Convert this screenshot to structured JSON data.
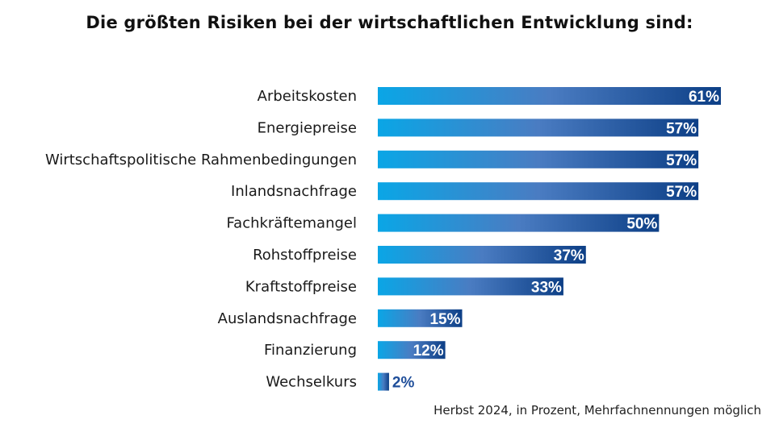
{
  "chart_data": {
    "type": "bar",
    "orientation": "horizontal",
    "title": "Die größten Risiken bei der wirtschaftlichen Entwicklung sind:",
    "categories": [
      "Arbeitskosten",
      "Energiepreise",
      "Wirtschaftspolitische Rahmenbedingungen",
      "Inlandsnachfrage",
      "Fachkräftemangel",
      "Rohstoffpreise",
      "Kraftstoffpreise",
      "Auslandsnachfrage",
      "Finanzierung",
      "Wechselkurs"
    ],
    "values": [
      61,
      57,
      57,
      57,
      50,
      37,
      33,
      15,
      12,
      2
    ],
    "value_labels": [
      "61%",
      "57%",
      "57%",
      "57%",
      "50%",
      "37%",
      "33%",
      "15%",
      "12%",
      "2%"
    ],
    "xlim": [
      0,
      100
    ],
    "grid": false,
    "legend": "none",
    "footnote": "Herbst 2024, in Prozent, Mehrfachnennungen möglich",
    "colors": {
      "bar_gradient_start": "#0aa6e6",
      "bar_gradient_mid": "#4a7cc2",
      "bar_gradient_end": "#0d3f86",
      "value_label_inside": "#ffffff",
      "value_label_outside": "#1f4e9a"
    }
  }
}
